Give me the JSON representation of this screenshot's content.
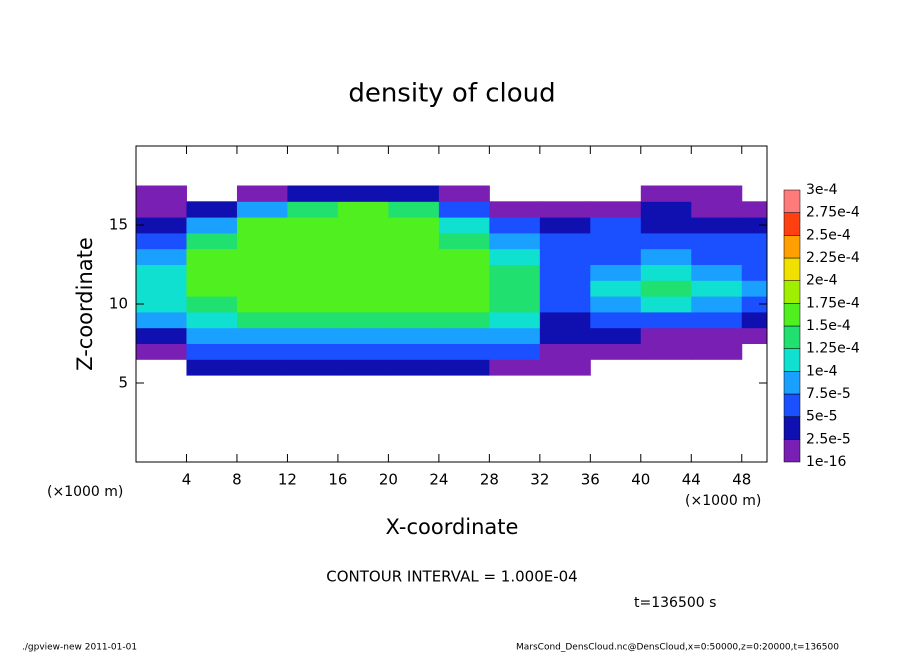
{
  "chart_data": {
    "type": "heatmap",
    "title": "density of cloud",
    "x_label": "X-coordinate",
    "y_label": "Z-coordinate",
    "x_unit": "(×1000 m)",
    "y_unit": "(×1000 m)",
    "contour_note": "CONTOUR INTERVAL = 1.000E-04",
    "time_note": "t=136500 s",
    "footer_left": "./gpview-new  2011-01-01",
    "footer_right": "MarsCond_DensCloud.nc@DensCloud,x=0:50000,z=0:20000,t=136500",
    "xlim": [
      0,
      50
    ],
    "ylim": [
      0,
      20
    ],
    "xticks": [
      4,
      8,
      12,
      16,
      20,
      24,
      28,
      32,
      36,
      40,
      44,
      48
    ],
    "yticks": [
      5,
      10,
      15
    ],
    "x": [
      2,
      6,
      10,
      14,
      18,
      22,
      26,
      30,
      34,
      38,
      42,
      46,
      50
    ],
    "z": [
      6,
      7,
      8,
      9,
      10,
      11,
      12,
      13,
      14,
      15,
      16,
      17
    ],
    "cell_width": 4,
    "cell_height": 1,
    "values": [
      [
        null,
        3e-05,
        3e-05,
        3e-05,
        3e-05,
        3e-05,
        3e-05,
        1e-05,
        1e-05,
        null,
        null,
        null,
        null
      ],
      [
        1e-05,
        6e-05,
        6e-05,
        6e-05,
        6e-05,
        6e-05,
        6e-05,
        5e-05,
        1e-05,
        1e-05,
        1e-05,
        1e-05,
        null
      ],
      [
        3e-05,
        9e-05,
        9e-05,
        9e-05,
        9e-05,
        9e-05,
        9e-05,
        8e-05,
        3e-05,
        3e-05,
        1e-05,
        1e-05,
        1e-05
      ],
      [
        9e-05,
        0.00012,
        0.00013,
        0.00013,
        0.00013,
        0.00013,
        0.00013,
        0.00012,
        4e-05,
        5e-05,
        6e-05,
        6e-05,
        4e-05
      ],
      [
        0.00011,
        0.00014,
        0.00015,
        0.00015,
        0.00015,
        0.00015,
        0.00015,
        0.00013,
        5e-05,
        9e-05,
        0.00012,
        9e-05,
        6e-05
      ],
      [
        0.00012,
        0.00015,
        0.00016,
        0.00016,
        0.00016,
        0.00016,
        0.00015,
        0.00014,
        6e-05,
        0.00011,
        0.00013,
        0.00011,
        9e-05
      ],
      [
        0.00012,
        0.00015,
        0.00016,
        0.00016,
        0.00016,
        0.00016,
        0.00015,
        0.00013,
        5e-05,
        9e-05,
        0.00012,
        9e-05,
        6e-05
      ],
      [
        9e-05,
        0.00015,
        0.00016,
        0.00016,
        0.00016,
        0.00016,
        0.00015,
        0.00012,
        6e-05,
        6e-05,
        9e-05,
        6e-05,
        6e-05
      ],
      [
        6e-05,
        0.00014,
        0.00016,
        0.00016,
        0.00016,
        0.00016,
        0.00014,
        9e-05,
        5e-05,
        6e-05,
        5e-05,
        5e-05,
        5e-05
      ],
      [
        4e-05,
        9e-05,
        0.00015,
        0.00016,
        0.00016,
        0.00015,
        0.00012,
        6e-05,
        4e-05,
        5e-05,
        4e-05,
        4e-05,
        3e-05
      ],
      [
        1e-05,
        3e-05,
        9e-05,
        0.00014,
        0.00015,
        0.00014,
        6e-05,
        1e-05,
        1e-05,
        1e-05,
        3e-05,
        1e-05,
        1e-05
      ],
      [
        1e-05,
        null,
        1e-05,
        4e-05,
        4e-05,
        3e-05,
        1e-05,
        null,
        null,
        null,
        1e-05,
        1e-05,
        null
      ]
    ],
    "levels": [
      1e-16,
      {
        "value": 2.5e-05,
        "label": "2.5e-5"
      },
      {
        "value": 5e-05,
        "label": "5e-5"
      },
      {
        "value": 7.5e-05,
        "label": "7.5e-5"
      },
      {
        "value": 0.0001,
        "label": "1e-4"
      },
      {
        "value": 0.000125,
        "label": "1.25e-4"
      },
      {
        "value": 0.00015,
        "label": "1.5e-4"
      },
      {
        "value": 0.000175,
        "label": "1.75e-4"
      },
      {
        "value": 0.0002,
        "label": "2e-4"
      },
      {
        "value": 0.000225,
        "label": "2.25e-4"
      },
      {
        "value": 0.00025,
        "label": "2.5e-4"
      },
      {
        "value": 0.000275,
        "label": "2.75e-4"
      },
      {
        "value": 0.0003,
        "label": "3e-4"
      }
    ],
    "colors": [
      "#7a1fb4",
      "#1010b0",
      "#1a50ff",
      "#1aa0ff",
      "#10e0d0",
      "#20e070",
      "#50f020",
      "#a0ef00",
      "#f0e000",
      "#ffa000",
      "#ff4010",
      "#ff7a7a"
    ]
  }
}
